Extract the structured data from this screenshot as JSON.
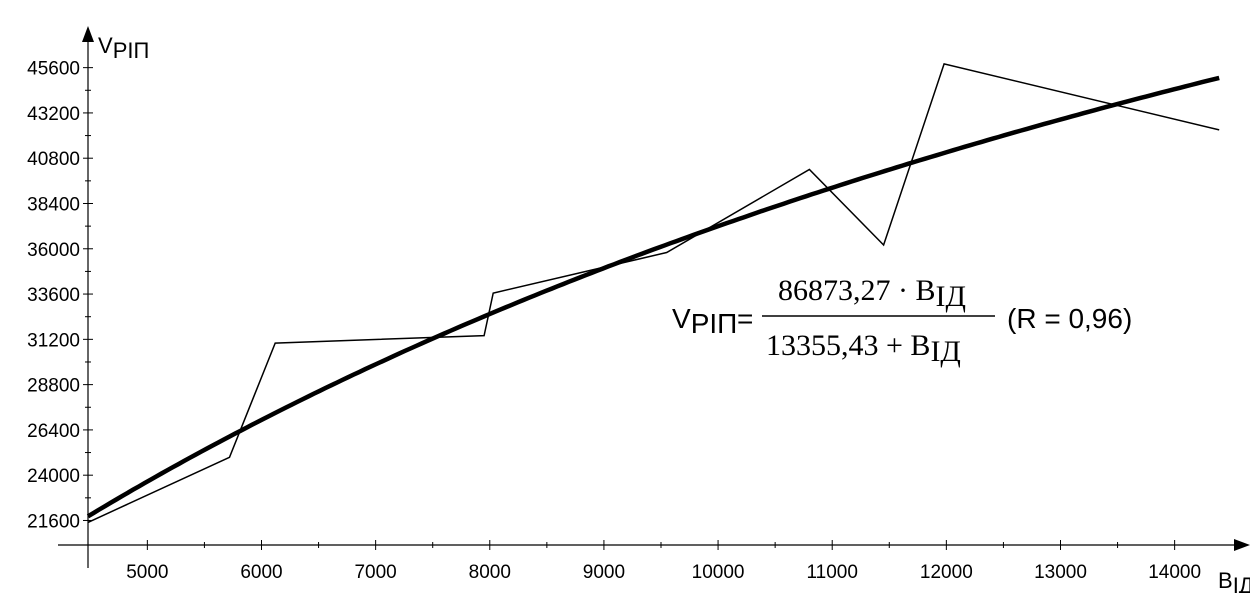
{
  "chart_data": {
    "type": "line",
    "xlabel": "B",
    "xlabel_sub": "ІД",
    "ylabel": "V",
    "ylabel_sub": "РІП",
    "xlim": [
      4480,
      14450
    ],
    "ylim": [
      20300,
      46800
    ],
    "x_ticks": [
      5000,
      6000,
      7000,
      8000,
      9000,
      10000,
      11000,
      12000,
      13000,
      14000
    ],
    "y_ticks": [
      21600,
      24000,
      26400,
      28800,
      31200,
      33600,
      36000,
      38400,
      40800,
      43200,
      45600
    ],
    "grid": false,
    "series": [
      {
        "role": "observed",
        "x": [
          4480,
          5720,
          6120,
          7950,
          8030,
          9550,
          10800,
          11450,
          11980,
          14390
        ],
        "y": [
          21500,
          24950,
          31000,
          31400,
          33650,
          35800,
          40200,
          36200,
          45800,
          42300
        ],
        "color": "#000000"
      },
      {
        "role": "fitted",
        "formula_coef_a": 86873.27,
        "formula_coef_b": 13355.43,
        "x_range": [
          4480,
          14390
        ],
        "color": "#000000"
      }
    ],
    "annotation": {
      "lhs": "V",
      "lhs_sub": "РІП",
      "equals": "=",
      "numerator": "86873,27 · B",
      "numerator_sub": "ІД",
      "denominator": "13355,43 + B",
      "denominator_sub": "ІД",
      "r_text": "(R = 0,96)"
    }
  }
}
